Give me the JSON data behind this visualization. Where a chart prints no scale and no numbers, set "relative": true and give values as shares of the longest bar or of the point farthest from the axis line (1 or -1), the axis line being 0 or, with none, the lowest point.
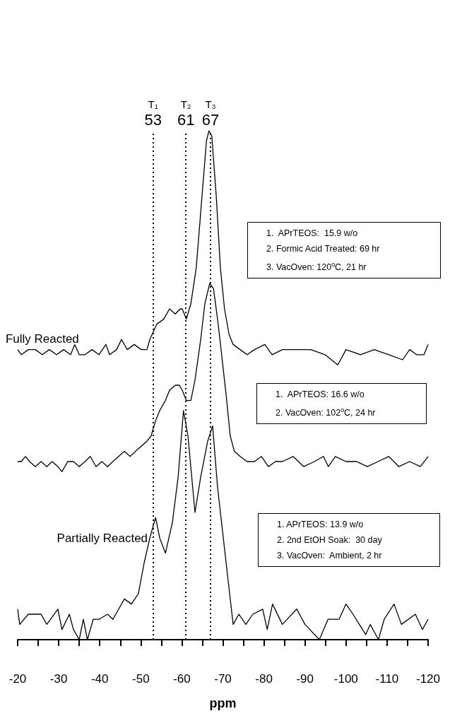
{
  "chart_data": {
    "type": "line",
    "relative": true,
    "xlabel": "ppm",
    "xlim": [
      -20,
      -120
    ],
    "xticks": [
      -20,
      {
        "value": -25,
        "label": null
      },
      -30,
      {
        "value": -35,
        "label": null
      },
      -40,
      {
        "value": -45,
        "label": null
      },
      -50,
      {
        "value": -55,
        "label": null
      },
      -60,
      {
        "value": -65,
        "label": null
      },
      -70,
      {
        "value": -75,
        "label": null
      },
      -80,
      {
        "value": -85,
        "label": null
      },
      -90,
      {
        "value": -95,
        "label": null
      },
      -100,
      {
        "value": -105,
        "label": null
      },
      -110,
      {
        "value": -115,
        "label": null
      },
      -120
    ],
    "marker": "none",
    "line_style": "solid",
    "series": [
      {
        "name": "Fully Reacted",
        "color": "#000000",
        "x": [
          -20.0,
          -20.9,
          -22.6,
          -24.3,
          -26.0,
          -27.7,
          -29.5,
          -31.2,
          -32.9,
          -33.9,
          -35.0,
          -36.4,
          -38.1,
          -39.8,
          -41.5,
          -42.4,
          -44.1,
          -45.3,
          -46.7,
          -48.4,
          -50.1,
          -51.5,
          -52.2,
          -53.9,
          -55.6,
          -57.0,
          -58.4,
          -59.6,
          -60.1,
          -61.1,
          -62.2,
          -63.5,
          -64.9,
          -66.0,
          -66.6,
          -67.3,
          -68.4,
          -69.4,
          -70.4,
          -71.5,
          -72.5,
          -74.2,
          -75.9,
          -77.7,
          -80.2,
          -82.0,
          -84.5,
          -88.0,
          -91.4,
          -94.9,
          -98.0,
          -100.0,
          -103.5,
          -106.9,
          -110.4,
          -113.8,
          -115.5,
          -117.2,
          -119.0,
          -120.0
        ],
        "values": [
          0.57,
          0.56,
          0.57,
          0.57,
          0.56,
          0.57,
          0.56,
          0.57,
          0.56,
          0.58,
          0.56,
          0.56,
          0.57,
          0.56,
          0.58,
          0.56,
          0.57,
          0.59,
          0.57,
          0.58,
          0.57,
          0.57,
          0.59,
          0.62,
          0.63,
          0.65,
          0.64,
          0.65,
          0.65,
          0.63,
          0.66,
          0.73,
          0.87,
          0.98,
          1,
          0.99,
          0.87,
          0.73,
          0.65,
          0.6,
          0.58,
          0.57,
          0.56,
          0.57,
          0.58,
          0.56,
          0.57,
          0.57,
          0.57,
          0.56,
          0.54,
          0.57,
          0.56,
          0.57,
          0.56,
          0.55,
          0.57,
          0.56,
          0.56,
          0.58
        ]
      },
      {
        "color": "#000000",
        "x": [
          -20.0,
          -20.9,
          -21.9,
          -22.9,
          -24.3,
          -25.7,
          -27.1,
          -28.4,
          -29.8,
          -30.8,
          -32.2,
          -33.6,
          -35.0,
          -36.4,
          -37.7,
          -39.1,
          -40.5,
          -41.9,
          -43.2,
          -44.6,
          -46.0,
          -47.4,
          -48.7,
          -50.1,
          -51.5,
          -52.5,
          -53.6,
          -54.6,
          -56.0,
          -57.0,
          -58.4,
          -59.4,
          -60.1,
          -61.1,
          -62.2,
          -63.2,
          -64.6,
          -65.6,
          -66.8,
          -67.7,
          -68.7,
          -69.7,
          -70.8,
          -71.8,
          -72.8,
          -74.2,
          -75.9,
          -77.7,
          -79.4,
          -81.1,
          -82.8,
          -84.5,
          -87.1,
          -89.7,
          -92.3,
          -94.5,
          -95.7,
          -97.4,
          -100.0,
          -102.6,
          -105.2,
          -107.8,
          -110.4,
          -112.9,
          -115.5,
          -118.1,
          -120.0
        ],
        "values": [
          0.35,
          0.35,
          0.36,
          0.35,
          0.34,
          0.35,
          0.34,
          0.35,
          0.34,
          0.33,
          0.35,
          0.35,
          0.34,
          0.35,
          0.36,
          0.34,
          0.35,
          0.34,
          0.35,
          0.36,
          0.37,
          0.36,
          0.37,
          0.38,
          0.39,
          0.4,
          0.43,
          0.45,
          0.47,
          0.49,
          0.5,
          0.5,
          0.49,
          0.47,
          0.47,
          0.51,
          0.59,
          0.66,
          0.7,
          0.69,
          0.63,
          0.56,
          0.48,
          0.4,
          0.37,
          0.36,
          0.35,
          0.35,
          0.36,
          0.34,
          0.35,
          0.35,
          0.36,
          0.34,
          0.35,
          0.36,
          0.34,
          0.36,
          0.35,
          0.35,
          0.34,
          0.35,
          0.36,
          0.34,
          0.35,
          0.34,
          0.36
        ]
      },
      {
        "name": "Partially Reacted",
        "color": "#000000",
        "x": [
          -20.0,
          -20.5,
          -22.6,
          -25.7,
          -27.1,
          -29.8,
          -30.8,
          -32.6,
          -33.6,
          -35.0,
          -36.0,
          -37.0,
          -38.4,
          -39.8,
          -41.9,
          -43.2,
          -46.0,
          -47.7,
          -49.4,
          -50.8,
          -52.2,
          -53.6,
          -54.6,
          -56.0,
          -57.7,
          -59.1,
          -60.4,
          -61.5,
          -63.2,
          -64.6,
          -66.3,
          -67.5,
          -68.7,
          -70.8,
          -72.5,
          -73.9,
          -75.6,
          -77.3,
          -79.7,
          -80.8,
          -82.1,
          -84.5,
          -88.0,
          -90.0,
          -93.5,
          -95.6,
          -98.3,
          -100.0,
          -101.7,
          -104.8,
          -105.9,
          -107.9,
          -109.3,
          -111.7,
          -113.5,
          -116.9,
          -118.6,
          -120.0
        ],
        "values": [
          0.06,
          0.03,
          0.05,
          0.05,
          0.03,
          0.06,
          0.02,
          0.05,
          0.02,
          0.0,
          0.04,
          0,
          0.04,
          0.04,
          0.05,
          0.04,
          0.08,
          0.07,
          0.09,
          0.15,
          0.2,
          0.24,
          0.2,
          0.17,
          0.23,
          0.32,
          0.45,
          0.4,
          0.25,
          0.32,
          0.39,
          0.42,
          0.3,
          0.15,
          0.03,
          0.05,
          0.03,
          0.05,
          0.06,
          0.02,
          0.07,
          0.03,
          0.06,
          0.03,
          0.0,
          0.04,
          0.04,
          0.07,
          0.05,
          0.01,
          0.03,
          0.0,
          0.04,
          0.07,
          0.03,
          0.05,
          0.02,
          0.04
        ]
      }
    ],
    "ref_lines": [
      {
        "axis": "x",
        "value": -53,
        "label": "T₁ 53",
        "line_style": "dotted",
        "color": "#000000"
      },
      {
        "axis": "x",
        "value": -61,
        "label": "T₂ 61",
        "line_style": "dotted",
        "color": "#000000"
      },
      {
        "axis": "x",
        "value": -67,
        "label": "T₃ 67",
        "line_style": "dotted",
        "color": "#000000"
      }
    ],
    "annotations": [
      "1.  APrTEOS:  15.9 w/o\n2. Formic Acid Treated: 69 hr\n3. VacOven: 120$^{o}$C, 21 hr",
      "1.  APrTEOS: 16.6 w/o\n2. VacOven: 102$^{o}$C, 24 hr",
      "1. APrTEOS: 13.9 w/o\n2. 2nd EtOH Soak:  30 day\n3. VacOven:  Ambient, 2 hr"
    ]
  }
}
